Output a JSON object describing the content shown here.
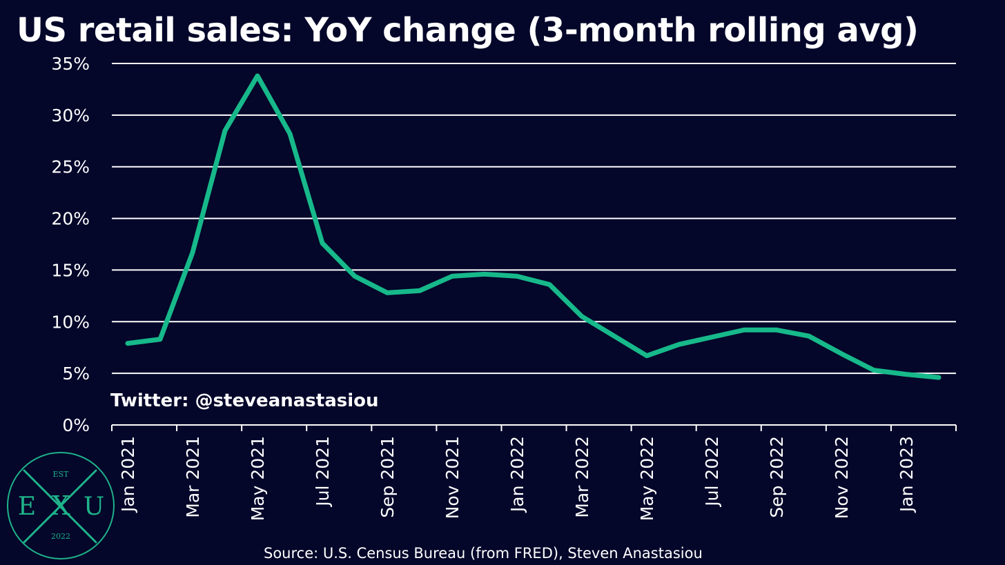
{
  "title": "US retail sales: YoY change (3-month rolling avg)",
  "watermark": "Twitter: @steveanastasiou",
  "source": "Source: U.S. Census Bureau (from FRED), Steven Anastasiou",
  "logo": {
    "top_text": "EST",
    "left_letter": "E",
    "center_letter": "X",
    "right_letter": "U",
    "bottom_text": "2022"
  },
  "colors": {
    "background": "#04062a",
    "line": "#17b98a",
    "grid": "#ffffff",
    "text": "#ffffff",
    "logo": "#1fb38a"
  },
  "chart_data": {
    "type": "line",
    "title": "US retail sales: YoY change (3-month rolling avg)",
    "xlabel": "",
    "ylabel": "",
    "ylim": [
      0,
      35
    ],
    "yticks": [
      "0%",
      "5%",
      "10%",
      "15%",
      "20%",
      "25%",
      "30%",
      "35%"
    ],
    "grid": true,
    "xtick_labels": [
      "Jan 2021",
      "Mar 2021",
      "May 2021",
      "Jul 2021",
      "Sep 2021",
      "Nov 2021",
      "Jan 2022",
      "Mar 2022",
      "May 2022",
      "Jul 2022",
      "Sep 2022",
      "Nov 2022",
      "Jan 2023"
    ],
    "categories": [
      "Jan 2021",
      "Feb 2021",
      "Mar 2021",
      "Apr 2021",
      "May 2021",
      "Jun 2021",
      "Jul 2021",
      "Aug 2021",
      "Sep 2021",
      "Oct 2021",
      "Nov 2021",
      "Dec 2021",
      "Jan 2022",
      "Feb 2022",
      "Mar 2022",
      "Apr 2022",
      "May 2022",
      "Jun 2022",
      "Jul 2022",
      "Aug 2022",
      "Sep 2022",
      "Oct 2022",
      "Nov 2022",
      "Dec 2022",
      "Jan 2023",
      "Feb 2023"
    ],
    "series": [
      {
        "values": [
          7.9,
          8.3,
          16.7,
          28.5,
          33.8,
          28.2,
          17.6,
          14.4,
          12.8,
          13.0,
          14.4,
          14.6,
          14.4,
          13.6,
          10.5,
          8.6,
          6.7,
          7.8,
          8.5,
          9.2,
          9.2,
          8.6,
          6.9,
          5.3,
          4.9,
          4.6
        ]
      }
    ]
  }
}
